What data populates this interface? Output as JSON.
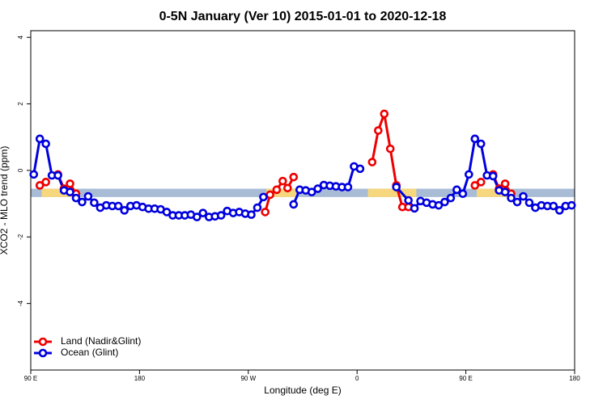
{
  "chart_data": {
    "type": "line",
    "title": "0-5N January (Ver 10)   2015-01-01 to 2020-12-18",
    "x_label": "Longitude (deg E)",
    "y_label": "XCO2 - MLO trend (ppm)",
    "xlim": [
      90,
      540
    ],
    "xticks": [
      {
        "value": 90,
        "label": "90 E"
      },
      180,
      {
        "value": 270,
        "label": "90 W"
      },
      {
        "value": 360,
        "label": "0"
      },
      {
        "value": 450,
        "label": "90 E"
      },
      {
        "value": 540,
        "label": "180"
      }
    ],
    "ylim": [
      -6,
      4.2
    ],
    "yticks": [
      -4,
      -2,
      0,
      2,
      4
    ],
    "legend": "bottom-left",
    "band": {
      "range": [
        -0.8,
        -0.55
      ],
      "color": "#a9bcd6",
      "land_color": "#f6d77e",
      "land_ranges": [
        [
          99,
          128
        ],
        [
          285,
          310
        ],
        [
          369,
          409
        ],
        [
          459,
          488
        ]
      ]
    },
    "series": [
      {
        "name": "Land (Nadir&Glint)",
        "color": "#ee0000",
        "x": [
          97.5,
          102.5,
          107.5,
          112.5,
          117.5,
          122.5,
          127.5,
          132.5,
          284,
          288,
          293.5,
          298.5,
          302.5,
          307.5,
          340,
          372.5,
          377.5,
          382.5,
          387.5,
          392.5,
          397.5,
          402.5,
          430,
          457.5,
          462.5,
          467.5,
          472.5,
          477.5,
          482.5,
          487.5
        ],
        "values": [
          -0.45,
          -0.35,
          null,
          -0.12,
          -0.55,
          -0.4,
          -0.7,
          null,
          -1.25,
          -0.73,
          -0.58,
          -0.32,
          -0.53,
          -0.2,
          null,
          0.25,
          1.2,
          1.7,
          0.65,
          -0.45,
          -1.1,
          -1.1,
          null,
          -0.45,
          -0.35,
          null,
          -0.12,
          -0.55,
          -0.4,
          -0.7
        ]
      },
      {
        "name": "Ocean (Glint)",
        "color": "#0000dd",
        "x": [
          92.5,
          97.5,
          102.5,
          107.5,
          112.5,
          117.5,
          122.5,
          127.5,
          132.5,
          137.5,
          142.5,
          147.5,
          152.5,
          157.5,
          162.5,
          167.5,
          172.5,
          177.5,
          182.5,
          187.5,
          192.5,
          197.5,
          202.5,
          207.5,
          212.5,
          217.5,
          222.5,
          227.5,
          232.5,
          237.5,
          242.5,
          247.5,
          252.5,
          257.5,
          262.5,
          267.5,
          272.5,
          277.5,
          282.5,
          287.5,
          307.5,
          312.5,
          317.5,
          322.5,
          327.5,
          332.5,
          337.5,
          342.5,
          347.5,
          352.5,
          357.5,
          362.5,
          367.5,
          392.5,
          402.5,
          407.5,
          412.5,
          417.5,
          422.5,
          427.5,
          432.5,
          437.5,
          442.5,
          447.5,
          452.5,
          457.5,
          462.5,
          467.5,
          472.5,
          477.5,
          482.5,
          487.5,
          492.5,
          497.5,
          502.5,
          507.5,
          512.5,
          517.5,
          522.5,
          527.5,
          532.5,
          537.5
        ],
        "values": [
          -0.12,
          0.95,
          0.8,
          -0.15,
          -0.15,
          -0.6,
          -0.65,
          -0.83,
          -0.95,
          -0.78,
          -0.97,
          -1.12,
          -1.05,
          -1.07,
          -1.07,
          -1.2,
          -1.07,
          -1.05,
          -1.1,
          -1.15,
          -1.15,
          -1.17,
          -1.25,
          -1.35,
          -1.35,
          -1.35,
          -1.33,
          -1.4,
          -1.28,
          -1.4,
          -1.38,
          -1.35,
          -1.22,
          -1.28,
          -1.25,
          -1.3,
          -1.33,
          -1.12,
          -0.8,
          null,
          -1.02,
          -0.58,
          -0.6,
          -0.65,
          -0.55,
          -0.44,
          -0.46,
          -0.48,
          -0.5,
          -0.5,
          0.12,
          0.05,
          null,
          -0.5,
          -0.9,
          -1.14,
          -0.92,
          -0.97,
          -1.02,
          -1.05,
          -0.95,
          -0.83,
          -0.58,
          -0.7,
          -0.12,
          0.95,
          0.8,
          -0.15,
          -0.17,
          -0.6,
          -0.65,
          -0.83,
          -0.95,
          -0.78,
          -0.97,
          -1.12,
          -1.05,
          -1.07,
          -1.07,
          -1.2,
          -1.07,
          -1.05
        ]
      }
    ]
  }
}
